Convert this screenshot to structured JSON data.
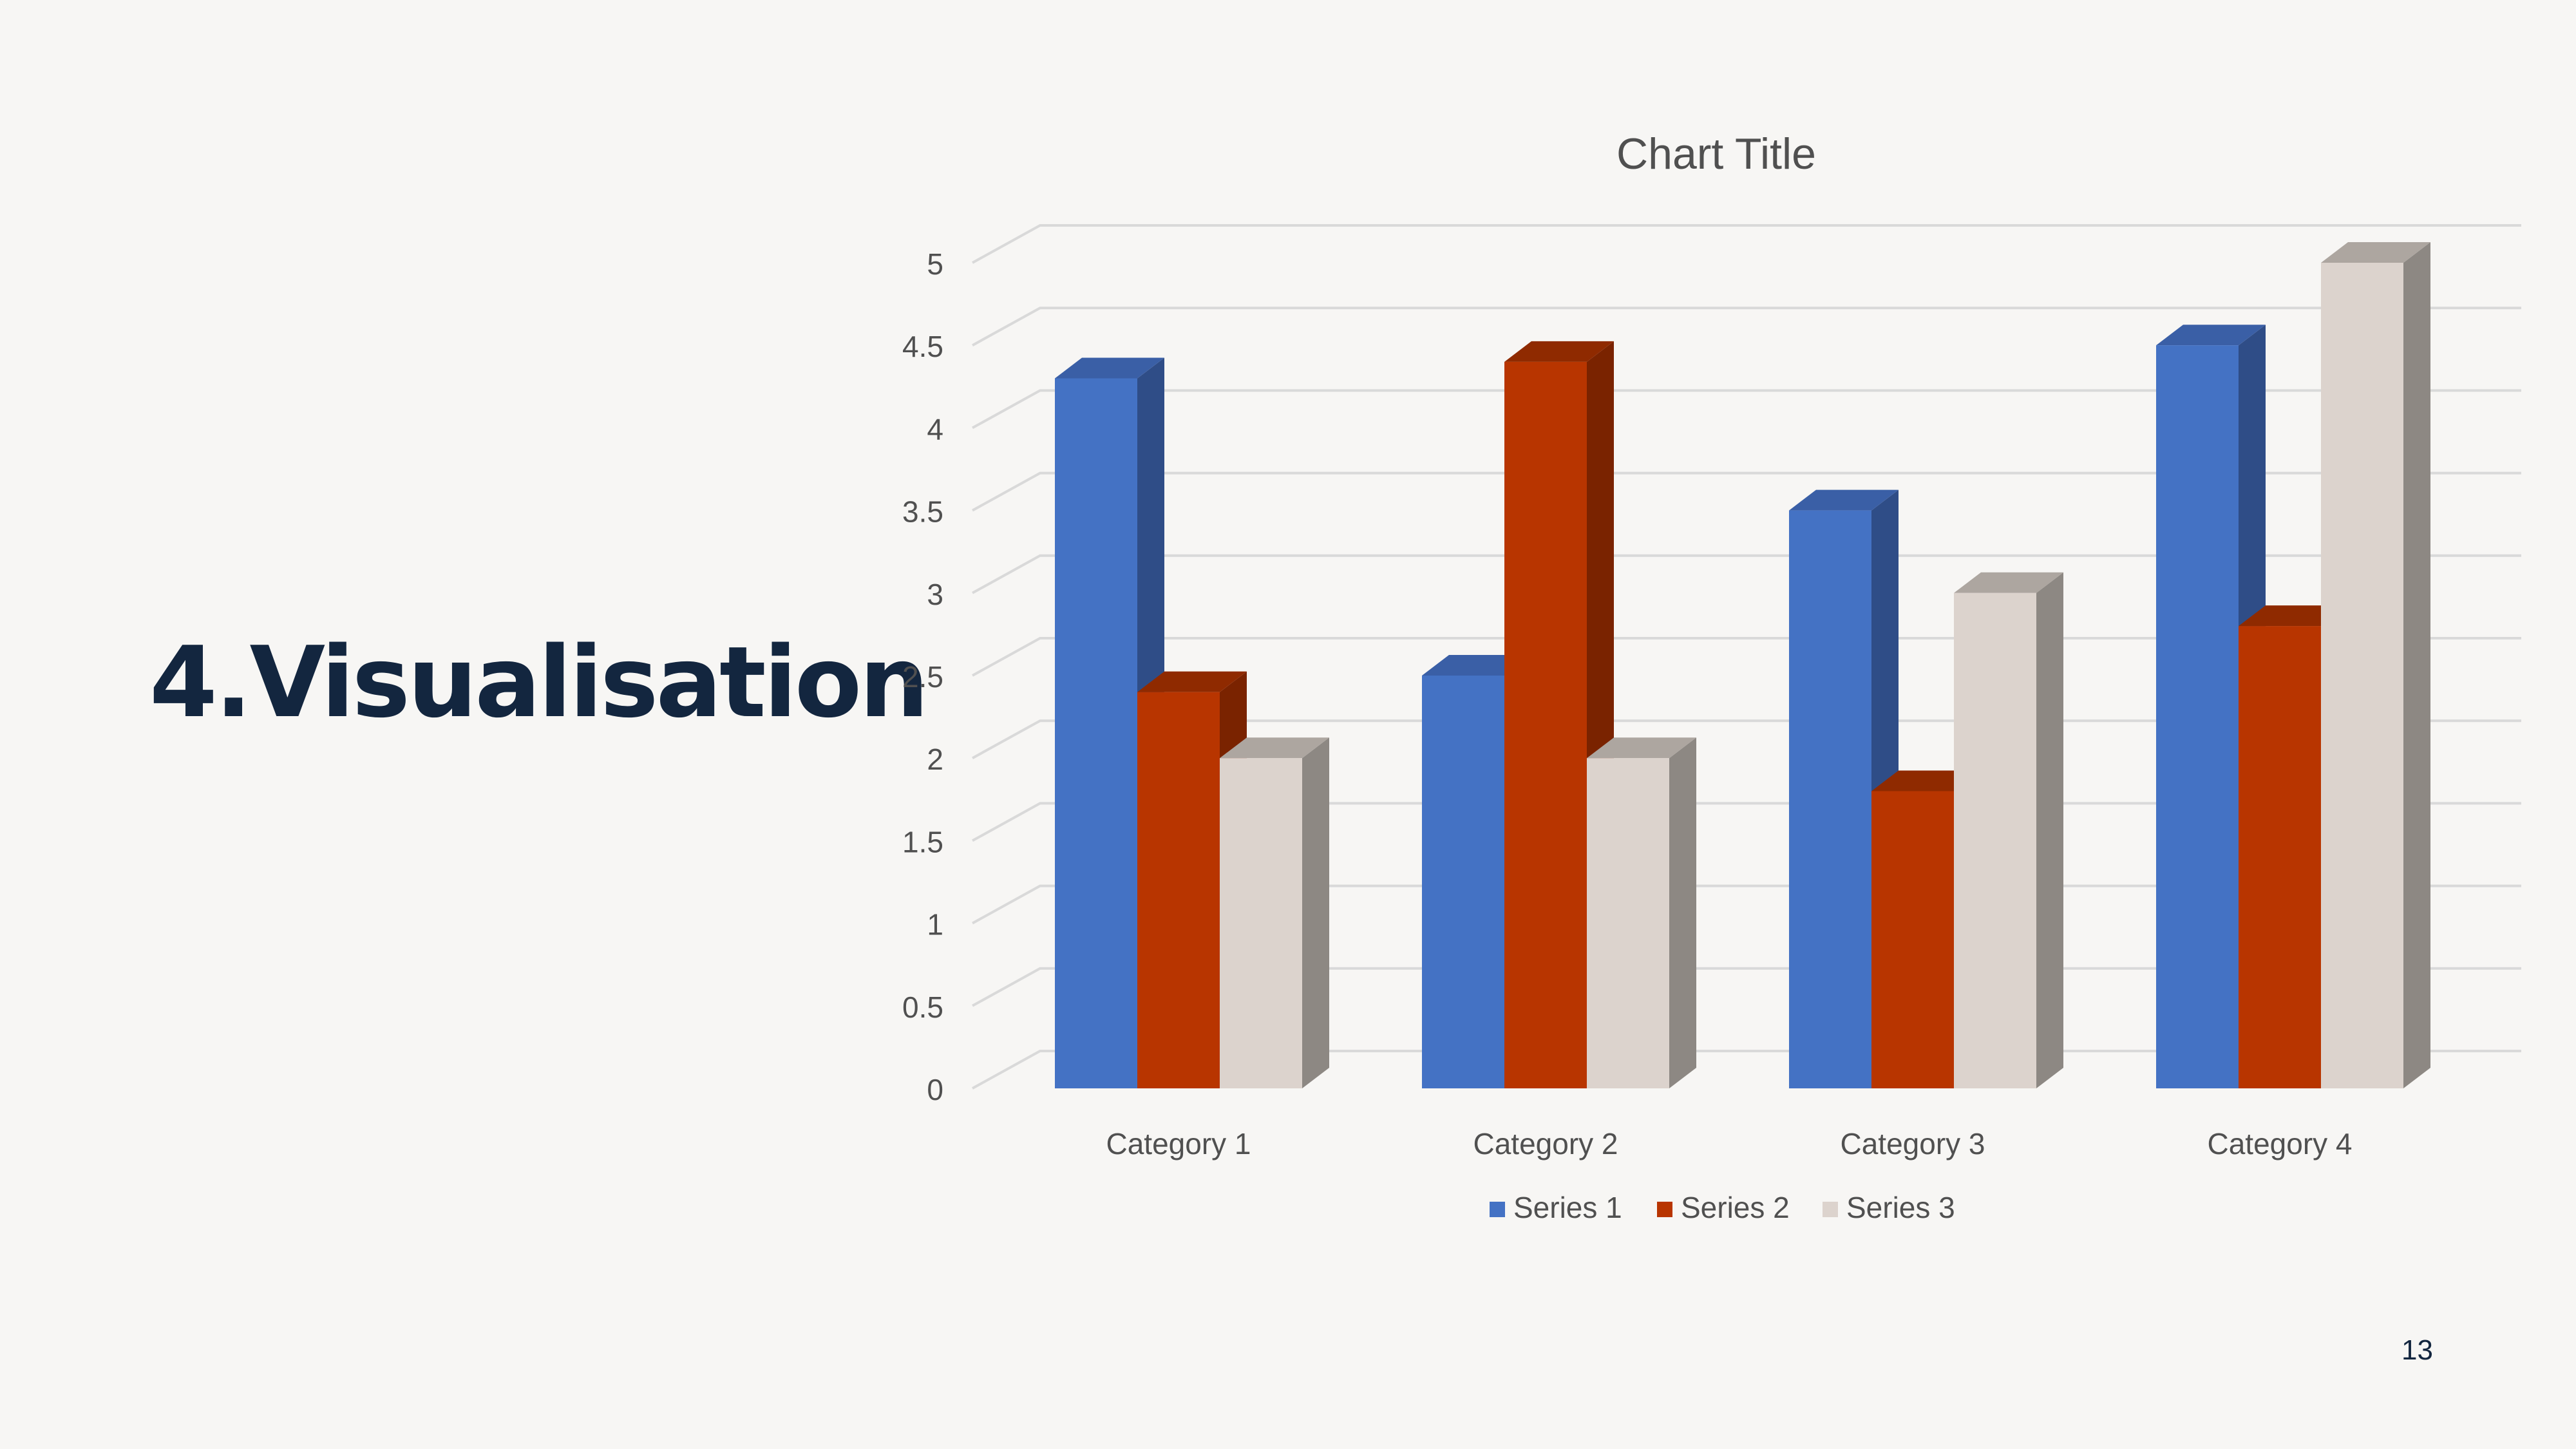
{
  "slide": {
    "title": "4.Visualisation",
    "page_number": "13"
  },
  "chart_data": {
    "type": "bar",
    "style": "3d-clustered-column",
    "title": "Chart Title",
    "categories": [
      "Category 1",
      "Category 2",
      "Category 3",
      "Category 4"
    ],
    "series": [
      {
        "name": "Series 1",
        "values": [
          4.3,
          2.5,
          3.5,
          4.5
        ],
        "color": "#4472c4",
        "side_color": "#2f4d87",
        "top_color": "#3a5fa6"
      },
      {
        "name": "Series 2",
        "values": [
          2.4,
          4.4,
          1.8,
          2.8
        ],
        "color": "#b83500",
        "side_color": "#7a2300",
        "top_color": "#8f2a00"
      },
      {
        "name": "Series 3",
        "values": [
          2,
          2,
          3,
          5
        ],
        "color": "#dcd3cd",
        "side_color": "#8d8883",
        "top_color": "#ada6a0"
      }
    ],
    "ylim": [
      0,
      5
    ],
    "yticks": [
      "0",
      "0.5",
      "1",
      "1.5",
      "2",
      "2.5",
      "3",
      "3.5",
      "4",
      "4.5",
      "5"
    ],
    "grid": true,
    "legend": "bottom"
  }
}
